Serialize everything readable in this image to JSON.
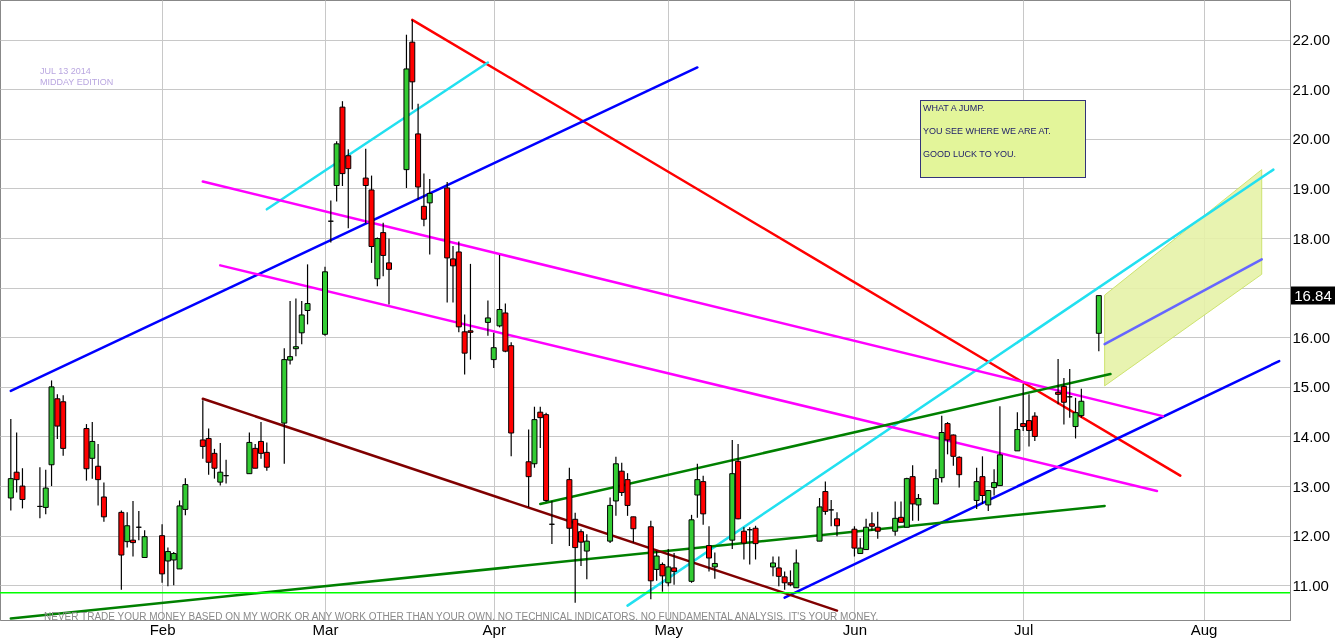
{
  "chart_data": {
    "type": "candlestick",
    "title": "JUL 13 2014",
    "subtitle": "MIDDAY EDITION",
    "x": [
      "2014-01-08",
      "2014-01-09",
      "2014-01-10",
      "2014-01-13",
      "2014-01-14",
      "2014-01-15",
      "2014-01-16",
      "2014-01-17",
      "2014-01-21",
      "2014-01-22",
      "2014-01-23",
      "2014-01-24",
      "2014-01-27",
      "2014-01-28",
      "2014-01-29",
      "2014-01-30",
      "2014-01-31",
      "2014-02-03",
      "2014-02-04",
      "2014-02-05",
      "2014-02-06",
      "2014-02-07",
      "2014-02-10",
      "2014-02-11",
      "2014-02-12",
      "2014-02-13",
      "2014-02-14",
      "2014-02-18",
      "2014-02-19",
      "2014-02-20",
      "2014-02-21",
      "2014-02-24",
      "2014-02-25",
      "2014-02-26",
      "2014-02-27",
      "2014-02-28",
      "2014-03-03",
      "2014-03-04",
      "2014-03-05",
      "2014-03-06",
      "2014-03-07",
      "2014-03-10",
      "2014-03-11",
      "2014-03-12",
      "2014-03-13",
      "2014-03-14",
      "2014-03-17",
      "2014-03-18",
      "2014-03-19",
      "2014-03-20",
      "2014-03-21",
      "2014-03-24",
      "2014-03-25",
      "2014-03-26",
      "2014-03-27",
      "2014-03-28",
      "2014-03-31",
      "2014-04-01",
      "2014-04-02",
      "2014-04-03",
      "2014-04-04",
      "2014-04-07",
      "2014-04-08",
      "2014-04-09",
      "2014-04-10",
      "2014-04-11",
      "2014-04-14",
      "2014-04-15",
      "2014-04-16",
      "2014-04-17",
      "2014-04-21",
      "2014-04-22",
      "2014-04-23",
      "2014-04-24",
      "2014-04-25",
      "2014-04-28",
      "2014-04-29",
      "2014-04-30",
      "2014-05-01",
      "2014-05-02",
      "2014-05-05",
      "2014-05-06",
      "2014-05-07",
      "2014-05-08",
      "2014-05-09",
      "2014-05-12",
      "2014-05-13",
      "2014-05-14",
      "2014-05-15",
      "2014-05-16",
      "2014-05-19",
      "2014-05-20",
      "2014-05-21",
      "2014-05-22",
      "2014-05-23",
      "2014-05-27",
      "2014-05-28",
      "2014-05-29",
      "2014-05-30",
      "2014-06-02",
      "2014-06-03",
      "2014-06-04",
      "2014-06-05",
      "2014-06-06",
      "2014-06-09",
      "2014-06-10",
      "2014-06-11",
      "2014-06-12",
      "2014-06-13",
      "2014-06-16",
      "2014-06-17",
      "2014-06-18",
      "2014-06-19",
      "2014-06-20",
      "2014-06-23",
      "2014-06-24",
      "2014-06-25",
      "2014-06-26",
      "2014-06-27",
      "2014-06-30",
      "2014-07-01",
      "2014-07-02",
      "2014-07-03",
      "2014-07-07",
      "2014-07-08",
      "2014-07-09",
      "2014-07-10",
      "2014-07-11",
      "2014-07-14"
    ],
    "ohlc": [
      [
        12.76,
        14.35,
        12.51,
        13.15
      ],
      [
        13.28,
        14.08,
        12.87,
        13.13
      ],
      [
        13.0,
        13.36,
        12.55,
        12.73
      ],
      [
        12.59,
        13.38,
        12.35,
        12.59
      ],
      [
        12.57,
        13.33,
        12.43,
        12.96
      ],
      [
        13.43,
        15.13,
        13.0,
        15.0
      ],
      [
        14.76,
        14.85,
        13.95,
        14.21
      ],
      [
        14.7,
        14.83,
        13.61,
        13.76
      ],
      [
        14.16,
        14.25,
        13.11,
        13.35
      ],
      [
        13.56,
        14.29,
        13.15,
        13.9
      ],
      [
        13.4,
        13.85,
        12.61,
        13.13
      ],
      [
        12.78,
        13.07,
        12.28,
        12.38
      ],
      [
        12.47,
        12.51,
        10.91,
        11.61
      ],
      [
        11.88,
        12.47,
        11.76,
        12.2
      ],
      [
        11.91,
        12.7,
        11.58,
        11.86
      ],
      [
        12.17,
        12.5,
        11.91,
        12.17
      ],
      [
        11.56,
        12.11,
        11.56,
        11.98
      ],
      [
        12.0,
        12.23,
        11.05,
        11.23
      ],
      [
        11.49,
        11.76,
        10.98,
        11.68
      ],
      [
        11.51,
        11.67,
        11.0,
        11.64
      ],
      [
        11.33,
        12.71,
        11.33,
        12.6
      ],
      [
        12.53,
        13.16,
        12.41,
        13.03
      ],
      [
        13.93,
        14.73,
        13.55,
        13.8
      ],
      [
        13.96,
        14.16,
        13.23,
        13.48
      ],
      [
        13.66,
        13.75,
        13.15,
        13.36
      ],
      [
        13.08,
        13.87,
        13.01,
        13.28
      ],
      [
        13.21,
        13.53,
        13.05,
        13.21
      ],
      [
        13.25,
        14.08,
        13.25,
        13.88
      ],
      [
        13.76,
        13.85,
        13.36,
        13.36
      ],
      [
        13.9,
        14.29,
        13.55,
        13.66
      ],
      [
        13.68,
        13.88,
        13.31,
        13.38
      ],
      [
        14.27,
        15.78,
        13.45,
        15.55
      ],
      [
        15.54,
        16.73,
        15.45,
        15.61
      ],
      [
        15.77,
        16.78,
        15.62,
        15.81
      ],
      [
        16.09,
        16.73,
        15.86,
        16.45
      ],
      [
        16.54,
        17.47,
        16.26,
        16.68
      ],
      [
        16.06,
        17.42,
        16.03,
        17.32
      ],
      [
        18.34,
        18.76,
        17.91,
        18.34
      ],
      [
        19.06,
        19.95,
        18.74,
        19.9
      ],
      [
        20.64,
        20.76,
        19.05,
        19.3
      ],
      [
        19.66,
        19.79,
        18.2,
        19.4
      ],
      [
        19.21,
        19.8,
        18.3,
        19.06
      ],
      [
        18.97,
        19.26,
        17.5,
        17.83
      ],
      [
        17.18,
        18.01,
        17.03,
        17.99
      ],
      [
        18.11,
        18.31,
        17.23,
        17.65
      ],
      [
        17.5,
        17.99,
        16.66,
        17.37
      ],
      [
        19.38,
        22.1,
        19.01,
        21.41
      ],
      [
        21.95,
        22.4,
        20.59,
        21.15
      ],
      [
        20.1,
        20.71,
        18.78,
        19.03
      ],
      [
        18.64,
        19.3,
        18.24,
        18.38
      ],
      [
        18.71,
        19.19,
        17.67,
        18.9
      ],
      [
        19.01,
        19.13,
        16.7,
        17.6
      ],
      [
        17.58,
        17.84,
        16.7,
        17.44
      ],
      [
        17.72,
        17.93,
        16.1,
        16.21
      ],
      [
        16.11,
        16.46,
        15.25,
        15.68
      ],
      [
        16.13,
        17.48,
        15.55,
        16.1
      ],
      [
        16.3,
        16.74,
        16.03,
        16.39
      ],
      [
        15.55,
        16.09,
        15.38,
        15.79
      ],
      [
        16.23,
        17.66,
        16.2,
        16.56
      ],
      [
        16.49,
        16.68,
        15.7,
        15.72
      ],
      [
        15.83,
        15.9,
        13.6,
        14.07
      ],
      [
        13.49,
        14.14,
        12.58,
        13.19
      ],
      [
        13.45,
        14.6,
        13.37,
        14.34
      ],
      [
        14.49,
        14.6,
        13.77,
        14.38
      ],
      [
        14.44,
        14.48,
        12.68,
        12.71
      ],
      [
        12.23,
        12.7,
        11.83,
        12.23
      ],
      [
        13.13,
        13.37,
        11.79,
        12.15
      ],
      [
        12.33,
        12.46,
        10.65,
        11.76
      ],
      [
        12.08,
        12.13,
        11.39,
        11.87
      ],
      [
        11.69,
        12.03,
        11.12,
        11.89
      ],
      [
        11.89,
        12.77,
        11.85,
        12.61
      ],
      [
        12.7,
        13.59,
        12.4,
        13.45
      ],
      [
        13.3,
        13.47,
        12.8,
        12.87
      ],
      [
        13.13,
        13.26,
        12.4,
        12.61
      ],
      [
        12.38,
        12.38,
        11.86,
        12.14
      ],
      [
        12.18,
        12.3,
        10.72,
        11.09
      ],
      [
        11.32,
        11.69,
        11.09,
        11.59
      ],
      [
        11.42,
        11.46,
        10.87,
        11.19
      ],
      [
        11.05,
        11.73,
        10.98,
        11.37
      ],
      [
        11.35,
        11.65,
        11.01,
        11.28
      ],
      [
        11.08,
        12.42,
        11.05,
        12.32
      ],
      [
        12.82,
        13.45,
        12.36,
        13.13
      ],
      [
        13.09,
        13.21,
        12.22,
        12.44
      ],
      [
        11.8,
        12.19,
        11.28,
        11.55
      ],
      [
        11.37,
        11.66,
        11.13,
        11.44
      ],
      [
        11.91,
        13.93,
        11.73,
        13.25
      ],
      [
        13.5,
        13.85,
        12.33,
        12.34
      ],
      [
        12.09,
        12.17,
        11.52,
        11.85
      ],
      [
        12.12,
        12.17,
        11.42,
        12.12
      ],
      [
        12.15,
        12.2,
        11.52,
        11.84
      ],
      [
        11.37,
        11.58,
        11.18,
        11.45
      ],
      [
        11.35,
        11.58,
        10.98,
        11.18
      ],
      [
        11.17,
        11.28,
        10.91,
        11.05
      ],
      [
        11.05,
        11.3,
        10.98,
        11.01
      ],
      [
        10.95,
        11.72,
        10.95,
        11.45
      ],
      [
        11.89,
        12.76,
        11.89,
        12.58
      ],
      [
        12.89,
        13.09,
        12.42,
        12.49
      ],
      [
        12.52,
        12.72,
        12.19,
        12.52
      ],
      [
        12.34,
        12.47,
        11.99,
        12.2
      ],
      [
        12.13,
        12.19,
        11.58,
        11.75
      ],
      [
        11.64,
        11.95,
        11.64,
        11.75
      ],
      [
        11.72,
        12.34,
        11.72,
        12.17
      ],
      [
        12.24,
        12.47,
        12.1,
        12.19
      ],
      [
        12.17,
        12.48,
        11.94,
        12.09
      ],
      [
        12.09,
        12.69,
        12.0,
        12.35
      ],
      [
        12.37,
        12.69,
        12.27,
        12.27
      ],
      [
        12.17,
        13.17,
        12.17,
        13.15
      ],
      [
        13.19,
        13.42,
        12.3,
        12.64
      ],
      [
        12.62,
        12.84,
        12.3,
        12.75
      ],
      [
        12.64,
        13.34,
        12.64,
        13.15
      ],
      [
        13.17,
        14.42,
        13.07,
        14.08
      ],
      [
        14.26,
        14.29,
        13.64,
        13.93
      ],
      [
        14.03,
        14.04,
        13.41,
        13.6
      ],
      [
        13.58,
        13.6,
        12.97,
        13.23
      ],
      [
        12.71,
        13.37,
        12.54,
        13.09
      ],
      [
        13.19,
        13.6,
        12.64,
        12.81
      ],
      [
        12.62,
        12.91,
        12.5,
        12.91
      ],
      [
        12.97,
        13.34,
        12.81,
        13.07
      ],
      [
        13.01,
        14.61,
        13.0,
        13.63
      ],
      [
        13.71,
        14.49,
        13.71,
        14.14
      ],
      [
        14.26,
        15.06,
        14.11,
        14.2
      ],
      [
        14.32,
        14.85,
        13.8,
        14.12
      ],
      [
        14.41,
        14.49,
        13.91,
        14.0
      ],
      [
        14.89,
        15.56,
        14.65,
        14.85
      ],
      [
        15.01,
        15.18,
        14.24,
        14.69
      ],
      [
        14.8,
        15.36,
        14.38,
        14.8
      ],
      [
        14.2,
        14.78,
        13.96,
        14.48
      ],
      [
        14.42,
        14.96,
        14.38,
        14.71
      ],
      [
        16.08,
        16.84,
        15.72,
        16.84
      ]
    ],
    "series": [
      {
        "type": "line",
        "color": "#ff0000",
        "x": [
          "2014-03-18",
          "2014-07-28"
        ],
        "values": [
          22.4,
          13.21
        ]
      },
      {
        "type": "line",
        "color": "#0000ff",
        "x": [
          "2014-05-21",
          "2014-08-14"
        ],
        "values": [
          10.75,
          15.52
        ]
      },
      {
        "type": "line",
        "color": "#0000ff",
        "x": [
          "2014-01-08",
          "2014-05-06"
        ],
        "values": [
          14.92,
          21.44
        ]
      },
      {
        "type": "line",
        "color": "#22e0f0",
        "x": [
          "2014-02-21",
          "2014-03-31"
        ],
        "values": [
          18.58,
          21.54
        ]
      },
      {
        "type": "line",
        "color": "#22e0f0",
        "x": [
          "2014-04-24",
          "2014-08-13"
        ],
        "values": [
          10.59,
          19.38
        ]
      },
      {
        "type": "line",
        "color": "#ff00ff",
        "x": [
          "2014-02-10",
          "2014-07-25"
        ],
        "values": [
          19.14,
          14.41
        ]
      },
      {
        "type": "line",
        "color": "#ff00ff",
        "x": [
          "2014-02-13",
          "2014-07-24"
        ],
        "values": [
          17.45,
          12.9
        ]
      },
      {
        "type": "line",
        "color": "#008000",
        "x": [
          "2014-01-08",
          "2014-07-15"
        ],
        "values": [
          10.33,
          12.6
        ]
      },
      {
        "type": "line",
        "color": "#008000",
        "x": [
          "2014-04-09",
          "2014-07-16"
        ],
        "values": [
          12.64,
          15.26
        ]
      },
      {
        "type": "line",
        "color": "#800000",
        "x": [
          "2014-02-10",
          "2014-05-30"
        ],
        "values": [
          14.76,
          10.49
        ]
      },
      {
        "type": "line",
        "color": "#6666ff",
        "x": [
          "2014-07-15",
          "2014-08-11"
        ],
        "values": [
          15.86,
          17.57
        ],
        "lower": [
          15.02,
          17.27
        ],
        "upper": [
          16.85,
          19.38
        ]
      }
    ],
    "ref_lines": [
      {
        "axis": "y",
        "value": 10.85,
        "color": "#00ff00"
      }
    ],
    "annotations": [
      "WHAT A JUMP.",
      "YOU SEE WHERE WE ARE AT.",
      "GOOD LUCK TO YOU.",
      "16.84",
      "NEVER TRADE YOUR MONEY BASED ON MY WORK OR ANY WORK OTHER THAN YOUR OWN. NO TECHNICAL INDICATORS. NO FUNDAMENTAL ANALYSIS. IT'S YOUR MONEY."
    ],
    "xlim": [
      "2014-01-07",
      "2014-08-15"
    ],
    "xticks": [
      {
        "value": "2014-02-03",
        "label": "Feb"
      },
      {
        "value": "2014-03-03",
        "label": "Mar"
      },
      {
        "value": "2014-04-01",
        "label": "Apr"
      },
      {
        "value": "2014-05-01",
        "label": "May"
      },
      {
        "value": "2014-06-02",
        "label": "Jun"
      },
      {
        "value": "2014-07-01",
        "label": "Jul"
      },
      {
        "value": "2014-08-01",
        "label": "Aug"
      }
    ],
    "ylim": [
      10.3,
      22.8
    ],
    "yticks": [
      {
        "value": 11,
        "label": "11.00"
      },
      {
        "value": 12,
        "label": "12.00"
      },
      {
        "value": 13,
        "label": "13.00"
      },
      {
        "value": 14,
        "label": "14.00"
      },
      {
        "value": 15,
        "label": "15.00"
      },
      {
        "value": 16,
        "label": "16.00"
      },
      {
        "value": 17,
        "label": null
      },
      {
        "value": 18,
        "label": "18.00"
      },
      {
        "value": 19,
        "label": "19.00"
      },
      {
        "value": 20,
        "label": "20.00"
      },
      {
        "value": 21,
        "label": "21.00"
      },
      {
        "value": 22,
        "label": "22.00"
      }
    ],
    "grid": true
  }
}
